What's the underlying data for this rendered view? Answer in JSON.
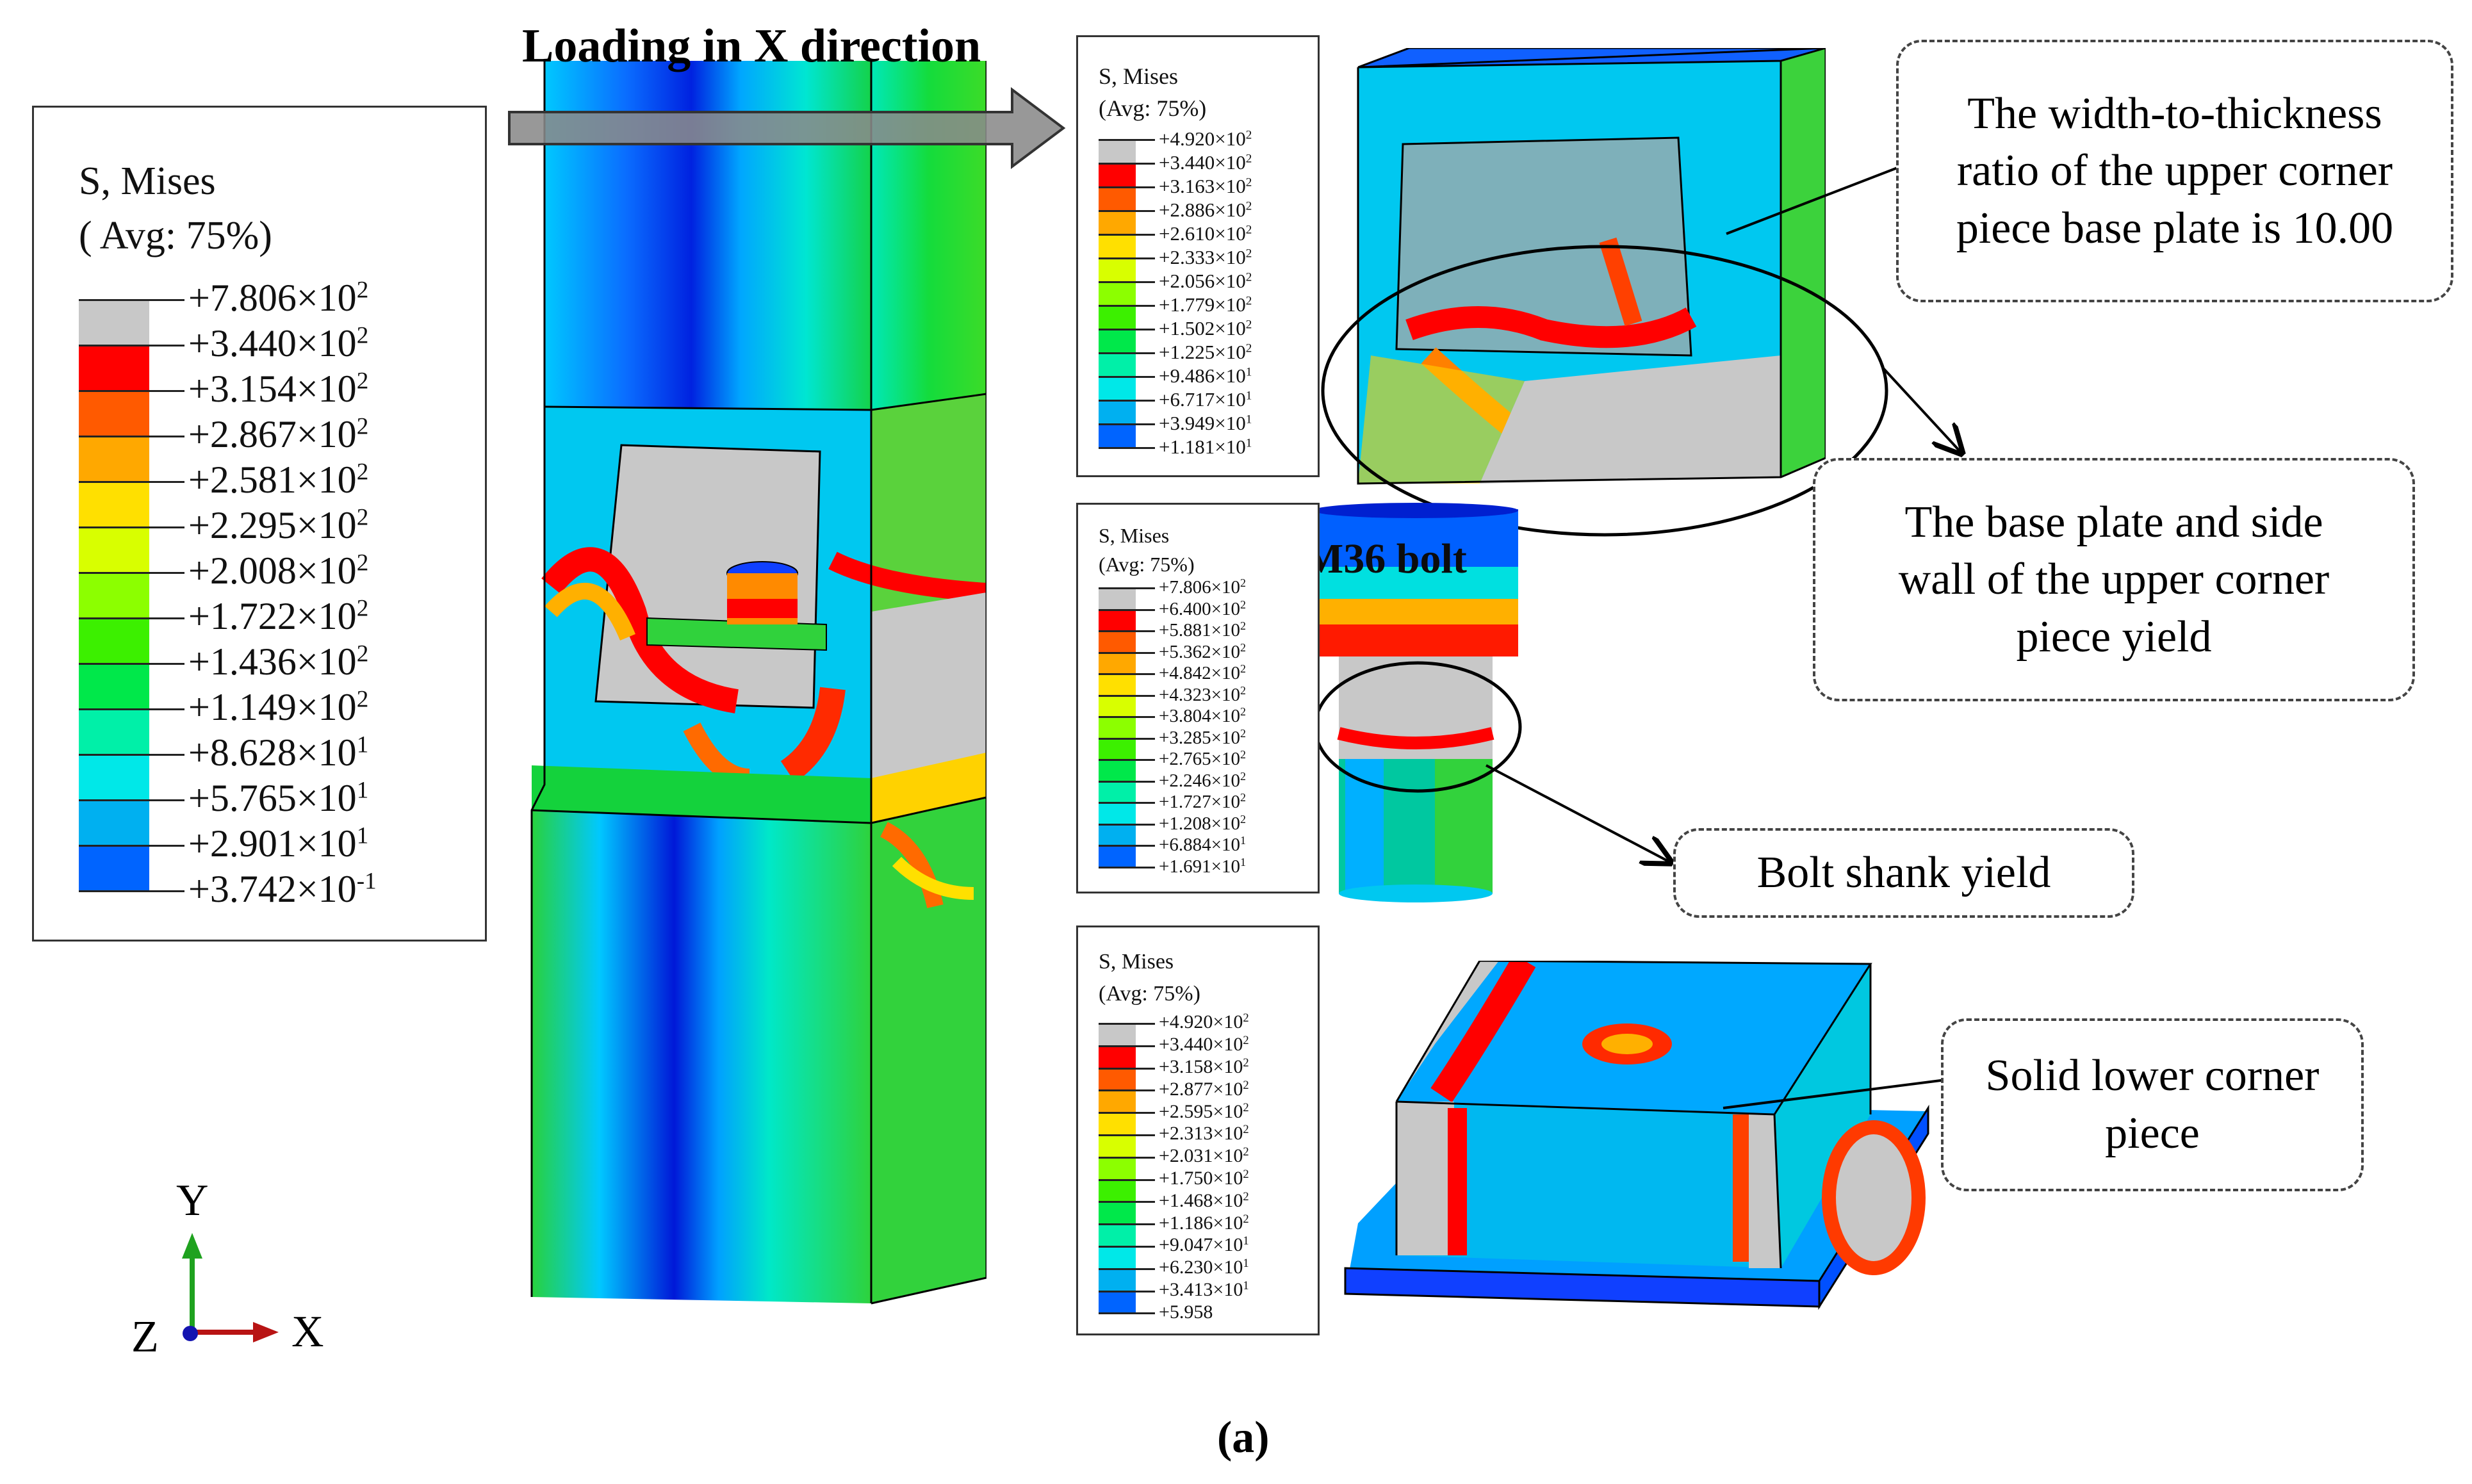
{
  "title": "Loading in X direction",
  "caption": "(a)",
  "bolt_label": "M36 bolt",
  "main_legend": {
    "title_line1": "S, Mises",
    "title_line2": "( Avg: 75%)",
    "entries": [
      {
        "m": "+7.806",
        "e": "2"
      },
      {
        "m": "+3.440",
        "e": "2"
      },
      {
        "m": "+3.154",
        "e": "2"
      },
      {
        "m": "+2.867",
        "e": "2"
      },
      {
        "m": "+2.581",
        "e": "2"
      },
      {
        "m": "+2.295",
        "e": "2"
      },
      {
        "m": "+2.008",
        "e": "2"
      },
      {
        "m": "+1.722",
        "e": "2"
      },
      {
        "m": "+1.436",
        "e": "2"
      },
      {
        "m": "+1.149",
        "e": "2"
      },
      {
        "m": "+8.628",
        "e": "1"
      },
      {
        "m": "+5.765",
        "e": "1"
      },
      {
        "m": "+2.901",
        "e": "1"
      },
      {
        "m": "+3.742",
        "e": "-1"
      }
    ]
  },
  "upper_legend": {
    "title_line1": "S, Mises",
    "title_line2": "(Avg: 75%)",
    "entries": [
      {
        "m": "+4.920",
        "e": "2"
      },
      {
        "m": "+3.440",
        "e": "2"
      },
      {
        "m": "+3.163",
        "e": "2"
      },
      {
        "m": "+2.886",
        "e": "2"
      },
      {
        "m": "+2.610",
        "e": "2"
      },
      {
        "m": "+2.333",
        "e": "2"
      },
      {
        "m": "+2.056",
        "e": "2"
      },
      {
        "m": "+1.779",
        "e": "2"
      },
      {
        "m": "+1.502",
        "e": "2"
      },
      {
        "m": "+1.225",
        "e": "2"
      },
      {
        "m": "+9.486",
        "e": "1"
      },
      {
        "m": "+6.717",
        "e": "1"
      },
      {
        "m": "+3.949",
        "e": "1"
      },
      {
        "m": "+1.181",
        "e": "1"
      }
    ]
  },
  "bolt_legend": {
    "title_line1": "S, Mises",
    "title_line2": "(Avg: 75%)",
    "entries": [
      {
        "m": "+7.806",
        "e": "2"
      },
      {
        "m": "+6.400",
        "e": "2"
      },
      {
        "m": "+5.881",
        "e": "2"
      },
      {
        "m": "+5.362",
        "e": "2"
      },
      {
        "m": "+4.842",
        "e": "2"
      },
      {
        "m": "+4.323",
        "e": "2"
      },
      {
        "m": "+3.804",
        "e": "2"
      },
      {
        "m": "+3.285",
        "e": "2"
      },
      {
        "m": "+2.765",
        "e": "2"
      },
      {
        "m": "+2.246",
        "e": "2"
      },
      {
        "m": "+1.727",
        "e": "2"
      },
      {
        "m": "+1.208",
        "e": "2"
      },
      {
        "m": "+6.884",
        "e": "1"
      },
      {
        "m": "+1.691",
        "e": "1"
      }
    ]
  },
  "lower_legend": {
    "title_line1": "S, Mises",
    "title_line2": "(Avg: 75%)",
    "entries": [
      {
        "m": "+4.920",
        "e": "2"
      },
      {
        "m": "+3.440",
        "e": "2"
      },
      {
        "m": "+3.158",
        "e": "2"
      },
      {
        "m": "+2.877",
        "e": "2"
      },
      {
        "m": "+2.595",
        "e": "2"
      },
      {
        "m": "+2.313",
        "e": "2"
      },
      {
        "m": "+2.031",
        "e": "2"
      },
      {
        "m": "+1.750",
        "e": "2"
      },
      {
        "m": "+1.468",
        "e": "2"
      },
      {
        "m": "+1.186",
        "e": "2"
      },
      {
        "m": "+9.047",
        "e": "1"
      },
      {
        "m": "+6.230",
        "e": "1"
      },
      {
        "m": "+3.413",
        "e": "1"
      },
      {
        "m": "+5.958",
        "e": ""
      }
    ]
  },
  "legend_colors": [
    "#c8c8c8",
    "#ff0000",
    "#ff5a00",
    "#ffa800",
    "#ffe000",
    "#d8ff00",
    "#8cff00",
    "#3cf000",
    "#00e84a",
    "#00f0a8",
    "#00e8e8",
    "#00b0f0",
    "#0064ff",
    "#0000e0"
  ],
  "callouts": {
    "upper_ratio": "The width-to-thickness\nratio of the upper corner\npiece base plate is 10.00",
    "yield_upper": "The base plate and side\nwall of the upper corner\npiece yield",
    "bolt_yield": "Bolt shank yield",
    "lower_piece": "Solid lower corner\npiece"
  },
  "axes": {
    "y": "Y",
    "x": "X",
    "z": "Z"
  }
}
